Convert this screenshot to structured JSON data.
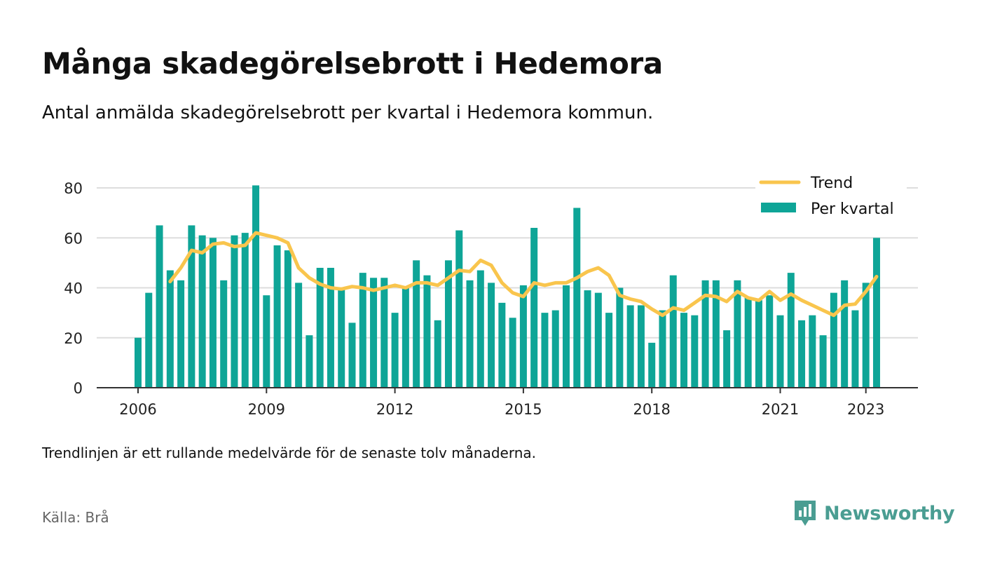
{
  "title": "Många skadegörelsebrott i Hedemora",
  "subtitle": "Antal anmälda skadegörelsebrott per kvartal i Hedemora kommun.",
  "footnote": "Trendlinjen är ett rullande medelvärde för de senaste tolv månaderna.",
  "source": "Källa: Brå",
  "brand": {
    "name": "Newsworthy",
    "icon": "newsworthy-logo-icon",
    "color": "#4a9d92"
  },
  "colors": {
    "bars": "#0ea597",
    "trend": "#f9c54d",
    "grid": "#dddddd",
    "axis": "#333333"
  },
  "legend": {
    "trend_label": "Trend",
    "bars_label": "Per kvartal"
  },
  "chart_data": {
    "type": "bar",
    "ylim": [
      0,
      80
    ],
    "yticks": [
      0,
      20,
      40,
      60,
      80
    ],
    "xticks": [
      {
        "label": "2006",
        "x": 2006.0
      },
      {
        "label": "2009",
        "x": 2009.0
      },
      {
        "label": "2012",
        "x": 2012.0
      },
      {
        "label": "2015",
        "x": 2015.0
      },
      {
        "label": "2018",
        "x": 2018.0
      },
      {
        "label": "2021",
        "x": 2021.0
      },
      {
        "label": "2023",
        "x": 2023.0
      }
    ],
    "x_start": 2006.0,
    "grid": true,
    "legend_position": "top-right",
    "series": [
      {
        "name": "Per kvartal",
        "kind": "bar",
        "values": [
          20,
          38,
          65,
          47,
          43,
          65,
          61,
          60,
          43,
          61,
          62,
          81,
          37,
          57,
          55,
          42,
          21,
          48,
          48,
          40,
          26,
          46,
          44,
          44,
          30,
          40,
          51,
          45,
          27,
          51,
          63,
          43,
          47,
          42,
          34,
          28,
          41,
          64,
          30,
          31,
          41,
          72,
          39,
          38,
          30,
          40,
          33,
          33,
          18,
          31,
          45,
          30,
          29,
          43,
          43,
          23,
          43,
          36,
          35,
          37,
          29,
          46,
          27,
          29,
          21,
          38,
          43,
          31,
          42,
          60
        ]
      },
      {
        "name": "Trend",
        "kind": "line",
        "values": [
          null,
          null,
          null,
          42.5,
          48,
          55,
          54,
          57.5,
          58,
          56.5,
          57,
          62,
          61,
          60,
          58,
          48,
          44,
          41.5,
          40,
          39.5,
          40.5,
          40,
          39,
          40,
          41,
          40,
          42,
          42,
          41,
          44,
          47,
          46.5,
          51,
          49,
          42,
          38,
          36.5,
          42,
          41,
          42,
          42,
          44,
          46.5,
          48,
          45,
          37,
          35.5,
          34.5,
          31.5,
          29,
          32,
          31,
          34,
          37,
          36.5,
          34.5,
          38.5,
          36,
          35,
          38.5,
          35,
          37.5,
          35,
          33,
          31,
          29,
          33,
          33.5,
          38.5,
          44.5
        ]
      }
    ]
  }
}
